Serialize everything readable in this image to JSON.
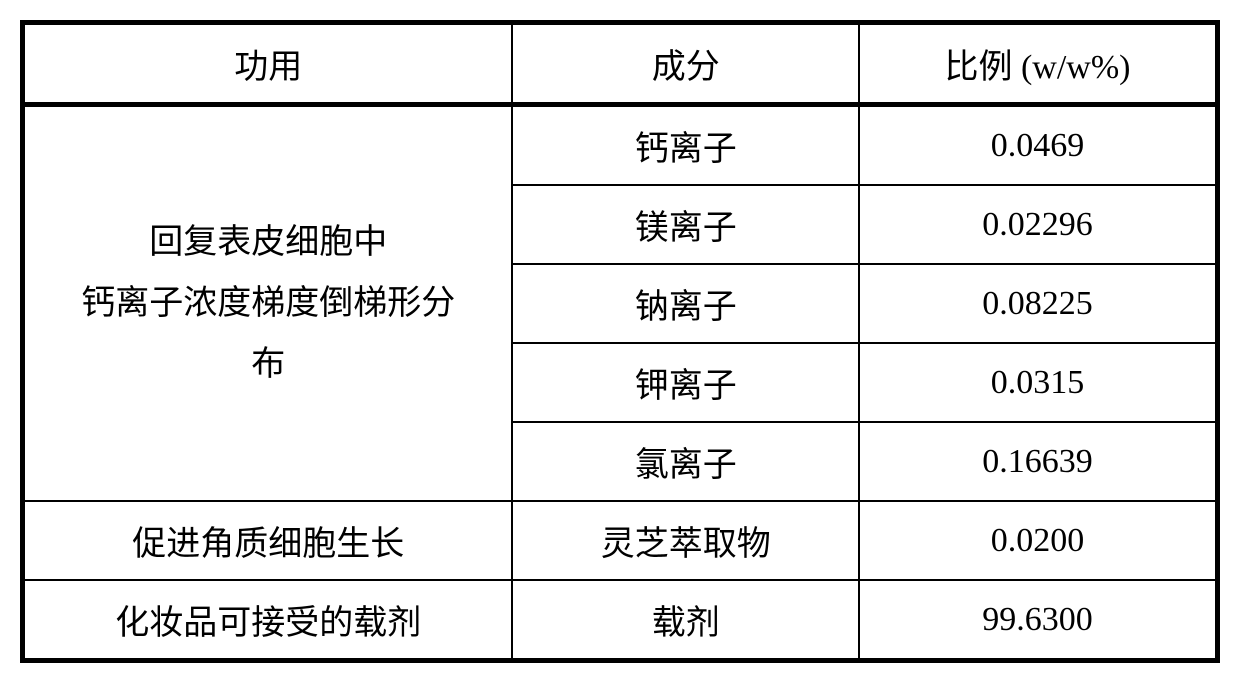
{
  "table": {
    "type": "table",
    "background_color": "#ffffff",
    "border_color": "#000000",
    "outer_border_width": 5,
    "inner_border_width": 2,
    "header_bottom_border_width": 5,
    "font_size": 34,
    "font_family": "SimSun",
    "text_color": "#000000",
    "columns": [
      {
        "key": "function",
        "label": "功用",
        "width_pct": 41
      },
      {
        "key": "ingredient",
        "label": "成分",
        "width_pct": 29
      },
      {
        "key": "ratio",
        "label": "比例 (w/w%)",
        "width_pct": 30
      }
    ],
    "groups": [
      {
        "function_lines": [
          "回复表皮细胞中",
          "钙离子浓度梯度倒梯形分",
          "布"
        ],
        "rowspan": 5,
        "rows": [
          {
            "ingredient": "钙离子",
            "ratio": "0.0469"
          },
          {
            "ingredient": "镁离子",
            "ratio": "0.02296"
          },
          {
            "ingredient": "钠离子",
            "ratio": "0.08225"
          },
          {
            "ingredient": "钾离子",
            "ratio": "0.0315"
          },
          {
            "ingredient": "氯离子",
            "ratio": "0.16639"
          }
        ]
      },
      {
        "function_lines": [
          "促进角质细胞生长"
        ],
        "rowspan": 1,
        "rows": [
          {
            "ingredient": "灵芝萃取物",
            "ratio": "0.0200"
          }
        ]
      },
      {
        "function_lines": [
          "化妆品可接受的载剂"
        ],
        "rowspan": 1,
        "rows": [
          {
            "ingredient": "载剂",
            "ratio": "99.6300"
          }
        ]
      }
    ]
  }
}
